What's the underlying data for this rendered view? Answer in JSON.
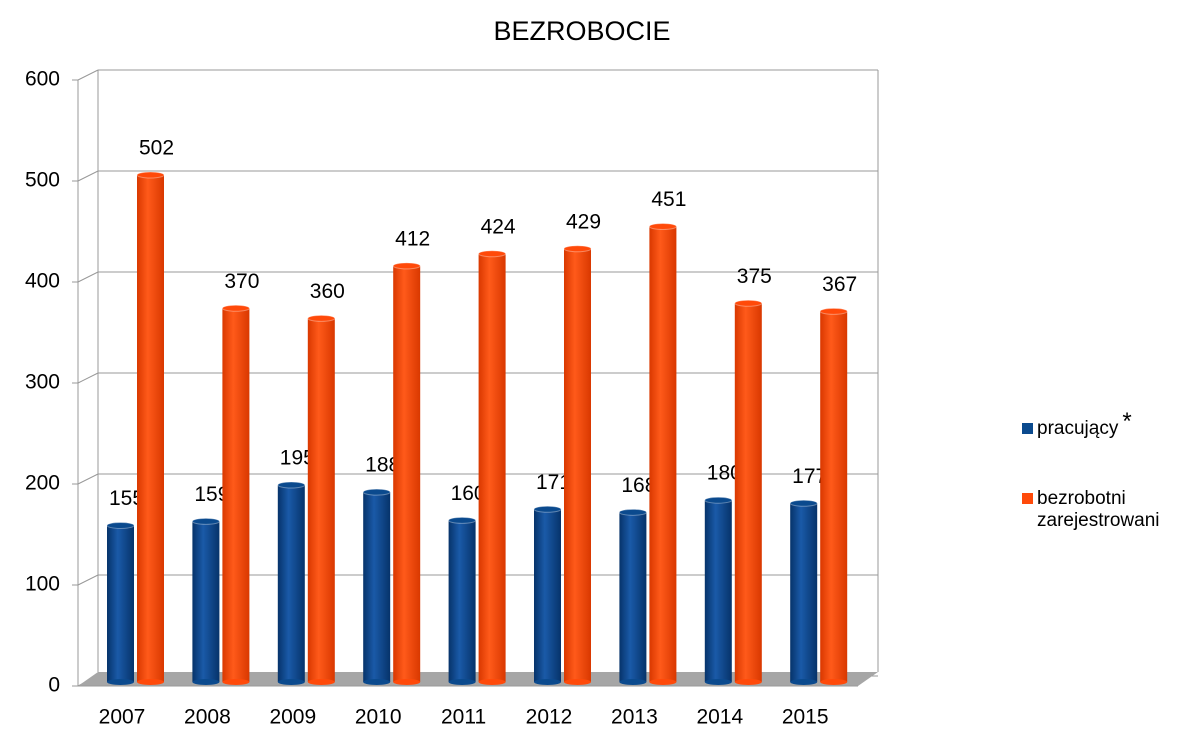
{
  "chart_data": {
    "type": "bar3d",
    "title": "BEZROBOCIE",
    "categories": [
      "2007",
      "2008",
      "2009",
      "2010",
      "2011",
      "2012",
      "2013",
      "2014",
      "2015"
    ],
    "series": [
      {
        "name": "pracujący",
        "color": "#0b4a8e",
        "values": [
          155,
          159,
          195,
          188,
          160,
          171,
          168,
          180,
          177
        ]
      },
      {
        "name": "bezrobotni zarejestrowani",
        "color": "#ff4a0a",
        "values": [
          502,
          370,
          360,
          412,
          424,
          429,
          451,
          375,
          367
        ]
      }
    ],
    "legend_note": "*",
    "ylim": [
      0,
      600
    ],
    "yticks": [
      0,
      100,
      200,
      300,
      400,
      500,
      600
    ],
    "grid": true,
    "legend": "right"
  }
}
